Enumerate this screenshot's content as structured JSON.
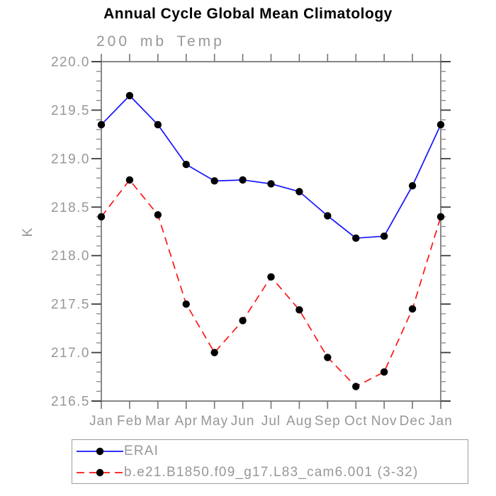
{
  "page": {
    "background": "#ffffff"
  },
  "chart_data": {
    "type": "line",
    "title": "Annual Cycle Global Mean Climatology",
    "subtitle": "200 mb Temp",
    "ylabel": "K",
    "xlabel": "",
    "ylim": [
      216.5,
      220.0
    ],
    "grid": false,
    "legend_position": "bottom-left",
    "categories": [
      "Jan",
      "Feb",
      "Mar",
      "Apr",
      "May",
      "Jun",
      "Jul",
      "Aug",
      "Sep",
      "Oct",
      "Nov",
      "Dec",
      "Jan"
    ],
    "ytick_values": [
      220.0,
      219.5,
      219.0,
      218.5,
      218.0,
      217.5,
      217.0,
      216.5
    ],
    "ytick_labels": [
      "220.0",
      "219.5",
      "219.0",
      "218.5",
      "218.0",
      "217.5",
      "217.0",
      "216.5"
    ],
    "minor_tick_step": 0.1,
    "series": [
      {
        "name": "ERAI",
        "color": "#1414ff",
        "line_style": "solid",
        "marker": "circle",
        "marker_color": "#000000",
        "values": [
          219.35,
          219.65,
          219.35,
          218.94,
          218.77,
          218.78,
          218.74,
          218.66,
          218.41,
          218.18,
          218.2,
          218.72,
          219.35
        ]
      },
      {
        "name": "b.e21.B1850.f09_g17.L83_cam6.001 (3-32)",
        "color": "#ff1414",
        "line_style": "dashed",
        "marker": "circle",
        "marker_color": "#000000",
        "values": [
          218.4,
          218.78,
          218.42,
          217.5,
          217.0,
          217.33,
          217.78,
          217.44,
          216.95,
          216.65,
          216.8,
          217.45,
          218.4
        ]
      }
    ],
    "colors": {
      "axis": "#757575",
      "major_tick": "#3c3c3c",
      "minor_tick": "#8d8d8d",
      "tick_label": "#979797",
      "title": "#000000",
      "subtitle": "#979797"
    }
  }
}
